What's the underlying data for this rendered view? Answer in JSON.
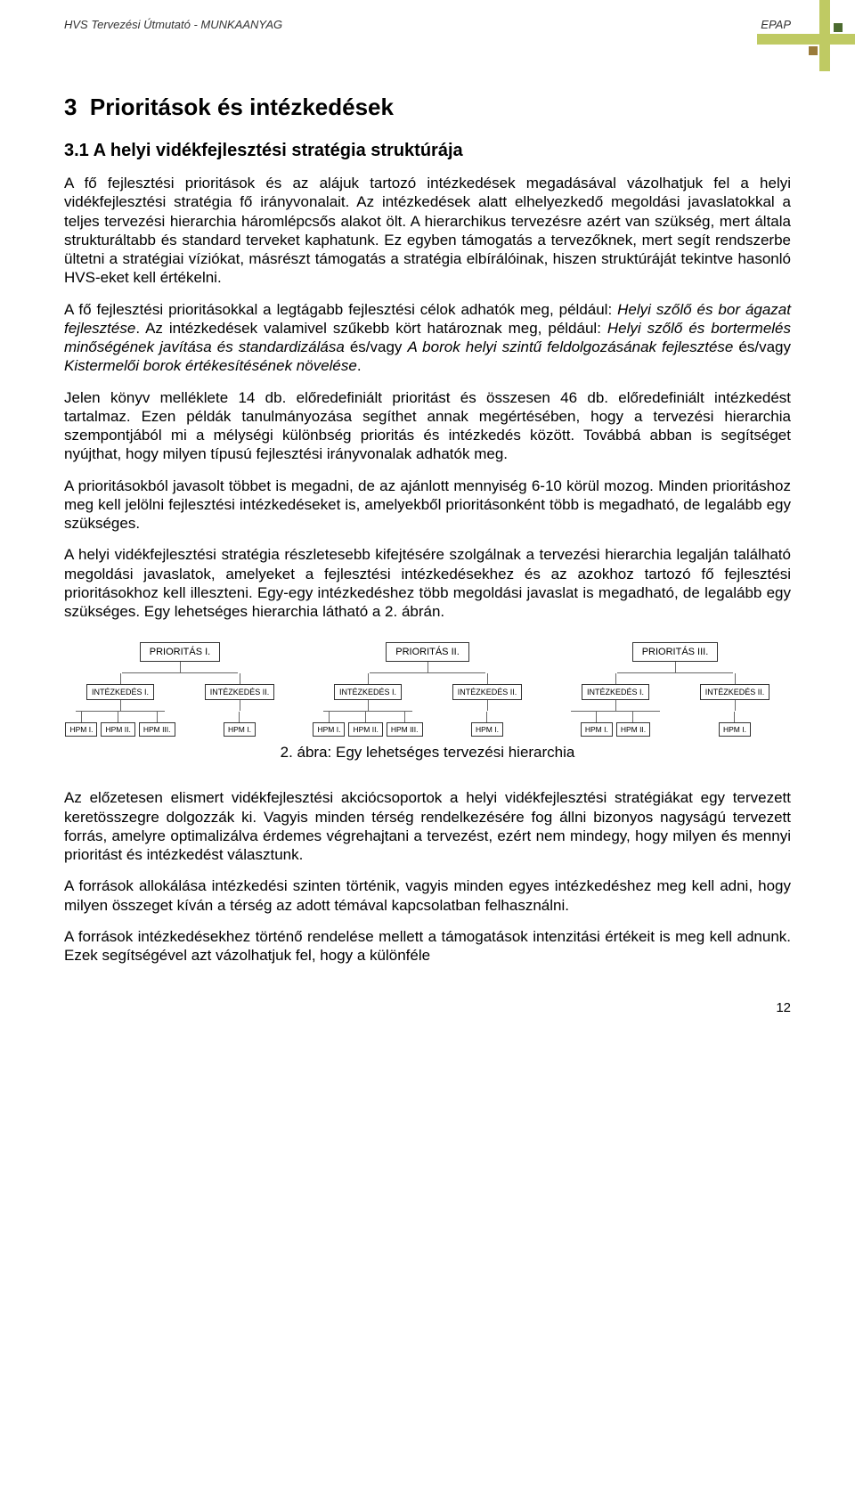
{
  "header": {
    "left": "HVS Tervezési Útmutató - MUNKAANYAG",
    "right": "EPAP"
  },
  "ornament": {
    "vbar_color": "#bfca63",
    "hbar_color": "#bfca63",
    "square_dark": "#4c6b2f",
    "square_brown": "#9a7b3a"
  },
  "section": {
    "number": "3",
    "title": "Prioritások és intézkedések"
  },
  "subsection": {
    "number": "3.1",
    "title": "A helyi vidékfejlesztési stratégia struktúrája"
  },
  "paragraphs": {
    "p1": "A fő fejlesztési prioritások és az alájuk tartozó intézkedések megadásával vázolhatjuk fel a helyi vidékfejlesztési stratégia fő irányvonalait. Az intézkedések alatt elhelyezkedő megoldási javaslatokkal a teljes tervezési hierarchia háromlépcsős alakot ölt. A hierarchikus tervezésre azért van szükség, mert általa strukturáltabb és standard terveket kaphatunk. Ez egyben támogatás a tervezőknek, mert segít rendszerbe ültetni a stratégiai víziókat, másrészt támogatás a stratégia elbírálóinak, hiszen struktúráját tekintve hasonló HVS-eket kell értékelni.",
    "p2_a": "A fő fejlesztési prioritásokkal a legtágabb fejlesztési célok adhatók meg, például: ",
    "p2_i1": "Helyi szőlő és bor ágazat fejlesztése",
    "p2_b": ". Az intézkedések valamivel szűkebb kört határoznak meg, például: ",
    "p2_i2": "Helyi szőlő és bortermelés minőségének javítása és standardizálása",
    "p2_c": " és/vagy ",
    "p2_i3": "A borok helyi szintű feldolgozásának fejlesztése",
    "p2_d": " és/vagy ",
    "p2_i4": "Kistermelői borok értékesítésének növelése",
    "p2_e": ".",
    "p3": "Jelen könyv melléklete 14 db. előredefiniált prioritást és összesen 46 db. előredefiniált intézkedést tartalmaz. Ezen példák tanulmányozása segíthet annak megértésében, hogy a tervezési hierarchia szempontjából mi a mélységi különbség prioritás és intézkedés között.  Továbbá abban is segítséget nyújthat, hogy milyen típusú fejlesztési irányvonalak adhatók meg.",
    "p4": "A prioritásokból javasolt többet is megadni, de az ajánlott mennyiség 6-10 körül mozog.  Minden prioritáshoz meg kell jelölni fejlesztési intézkedéseket is, amelyekből prioritásonként több is megadható, de legalább egy szükséges.",
    "p5": "A helyi vidékfejlesztési stratégia részletesebb kifejtésére szolgálnak a tervezési hierarchia legalján található megoldási javaslatok, amelyeket a fejlesztési intézkedésekhez és az azokhoz tartozó fő fejlesztési prioritásokhoz kell illeszteni. Egy-egy intézkedéshez több megoldási javaslat is megadható, de legalább egy szükséges. Egy lehetséges hierarchia látható a 2. ábrán.",
    "p6": "Az előzetesen elismert vidékfejlesztési akciócsoportok a helyi vidékfejlesztési stratégiákat egy tervezett keretösszegre dolgozzák ki.  Vagyis minden térség rendelkezésére fog állni bizonyos nagyságú tervezett forrás, amelyre optimalizálva érdemes végrehajtani a tervezést, ezért nem mindegy, hogy milyen és mennyi prioritást és intézkedést választunk.",
    "p7": "A források allokálása intézkedési szinten történik, vagyis minden egyes intézkedéshez meg kell adni, hogy milyen összeget kíván a térség az adott témával kapcsolatban felhasználni.",
    "p8": "A források intézkedésekhez történő rendelése mellett a támogatások intenzitási értékeit is meg kell adnunk. Ezek segítségével azt vázolhatjuk fel, hogy a különféle"
  },
  "figure": {
    "caption": "2. ábra: Egy lehetséges tervezési hierarchia",
    "priorities": [
      {
        "label": "PRIORITÁS I.",
        "children": [
          {
            "label": "INTÉZKEDÉS I.",
            "leaves": [
              "HPM I.",
              "HPM II.",
              "HPM III."
            ]
          },
          {
            "label": "INTÉZKEDÉS II.",
            "leaves": [
              "HPM I."
            ]
          }
        ]
      },
      {
        "label": "PRIORITÁS II.",
        "children": [
          {
            "label": "INTÉZKEDÉS I.",
            "leaves": [
              "HPM I.",
              "HPM II.",
              "HPM III."
            ]
          },
          {
            "label": "INTÉZKEDÉS II.",
            "leaves": [
              "HPM I."
            ]
          }
        ]
      },
      {
        "label": "PRIORITÁS III.",
        "children": [
          {
            "label": "INTÉZKEDÉS I.",
            "leaves": [
              "HPM I.",
              "HPM II."
            ]
          },
          {
            "label": "INTÉZKEDÉS II.",
            "leaves": [
              "HPM I."
            ]
          }
        ]
      }
    ]
  },
  "page_number": "12"
}
